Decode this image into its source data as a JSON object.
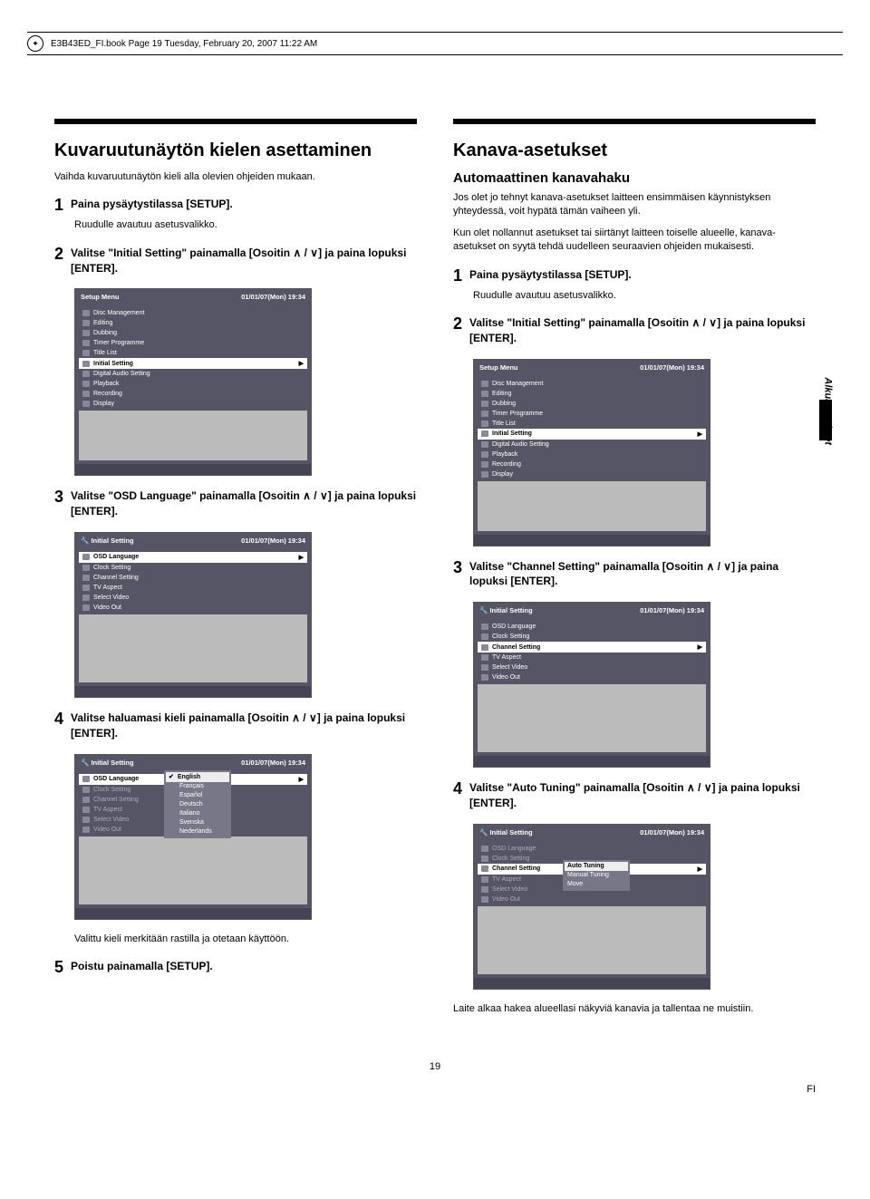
{
  "header": {
    "file_text": "E3B43ED_FI.book  Page 19  Tuesday, February 20, 2007  11:22 AM"
  },
  "left": {
    "h2": "Kuvaruutunäytön kielen asettaminen",
    "subtitle": "Vaihda kuvaruutunäytön kieli alla olevien ohjeiden mukaan.",
    "s1": "Paina pysäytystilassa [SETUP].",
    "s1sub": "Ruudulle avautuu asetusvalikko.",
    "s2a": "Valitse \"Initial Setting\" painamalla [Osoitin ",
    "s2b": "] ja paina lopuksi [ENTER].",
    "s3a": "Valitse \"OSD Language\" painamalla [Osoitin ",
    "s3b": "] ja paina lopuksi [ENTER].",
    "s4a": "Valitse haluamasi kieli painamalla [Osoitin ",
    "s4b": "] ja paina lopuksi [ENTER].",
    "caption4": "Valittu kieli merkitään rastilla ja otetaan käyttöön.",
    "s5": "Poistu painamalla [SETUP]."
  },
  "right": {
    "h2": "Kanava-asetukset",
    "h3": "Automaattinen kanavahaku",
    "p1": "Jos olet jo tehnyt kanava-asetukset laitteen ensimmäisen käynnistyksen yhteydessä, voit hypätä tämän vaiheen yli.",
    "p2": "Kun olet nollannut asetukset tai siirtänyt laitteen toiselle alueelle, kanava-asetukset on syytä tehdä uudelleen seuraavien ohjeiden mukaisesti.",
    "s1": "Paina pysäytystilassa [SETUP].",
    "s1sub": "Ruudulle avautuu asetusvalikko.",
    "s2a": "Valitse \"Initial Setting\" painamalla [Osoitin ",
    "s2b": "] ja paina lopuksi [ENTER].",
    "s3a": "Valitse \"Channel Setting\" painamalla [Osoitin ",
    "s3b": "] ja paina lopuksi [ENTER].",
    "s4a": "Valitse \"Auto Tuning\" painamalla [Osoitin ",
    "s4b": "] ja paina lopuksi [ENTER].",
    "post": "Laite alkaa hakea alueellasi näkyviä kanavia ja tallentaa ne muistiin."
  },
  "tab": "Alkuasetukset",
  "menus": {
    "setup_title": "Setup Menu",
    "timestamp": "01/01/07(Mon)    19:34",
    "setup_items": [
      "Disc Management",
      "Editing",
      "Dubbing",
      "Timer Programme",
      "Title List",
      "Initial Setting",
      "Digital Audio Setting",
      "Playback",
      "Recording",
      "Display"
    ],
    "initial_title": "Initial Setting",
    "initial_items": [
      "OSD Language",
      "Clock Setting",
      "Channel Setting",
      "TV Aspect",
      "Select Video",
      "Video Out"
    ],
    "langs": [
      "English",
      "Français",
      "Español",
      "Deutsch",
      "Italiano",
      "Svenska",
      "Nederlands"
    ],
    "tuning": [
      "Auto Tuning",
      "Manual Tuning",
      "Move"
    ]
  },
  "footer": {
    "page": "19",
    "fi": "FI"
  }
}
